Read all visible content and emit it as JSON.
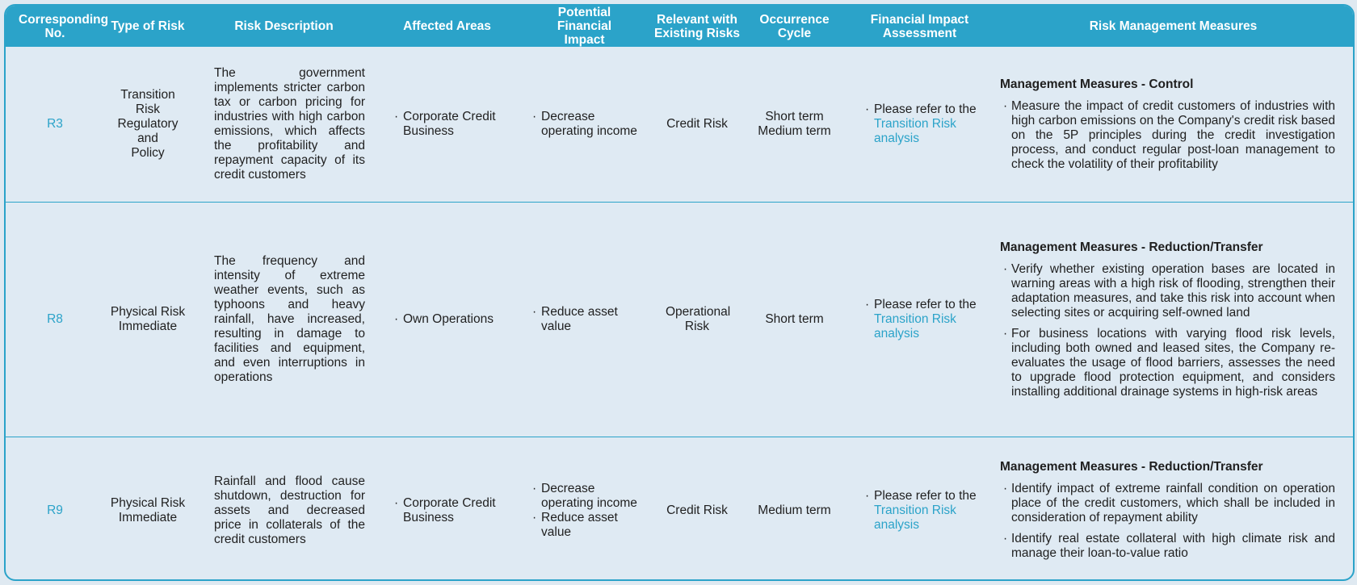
{
  "headers": [
    "Corresponding No.",
    "Type of Risk",
    "Risk Description",
    "Affected Areas",
    "Potential Financial Impact",
    "Relevant with Existing Risks",
    "Occurrence Cycle",
    "Financial Impact Assessment",
    "Risk Management Measures"
  ],
  "rows": [
    {
      "no": "R3",
      "type": [
        "Transition Risk",
        "Regulatory and",
        "Policy"
      ],
      "description": "The government implements stricter carbon tax or carbon pricing for industries with high carbon emissions, which affects the profitability and repayment capacity of its credit customers",
      "areas": [
        "Corporate Credit Business"
      ],
      "impacts": [
        "Decrease operating income"
      ],
      "existing": "Credit Risk",
      "cycle": [
        "Short term",
        "Medium term"
      ],
      "assessment_prefix": "Please refer to the",
      "assessment_link": "Transition Risk analysis",
      "measures_title": "Management Measures - Control",
      "measures": [
        "Measure the impact of credit customers of industries with high carbon emissions on the Company's credit risk based on the 5P principles during the credit investigation process, and conduct regular post-loan management to check the volatility of their profitability"
      ]
    },
    {
      "no": "R8",
      "type": [
        "Physical Risk",
        "Immediate"
      ],
      "description": "The frequency and intensity of extreme weather events, such as typhoons and heavy rainfall, have increased, resulting in damage to facilities and equipment, and even interruptions in operations",
      "areas": [
        "Own Operations"
      ],
      "impacts": [
        "Reduce asset value"
      ],
      "existing": "Operational Risk",
      "cycle": [
        "Short term"
      ],
      "assessment_prefix": "Please refer to the",
      "assessment_link": "Transition Risk analysis",
      "measures_title": "Management Measures - Reduction/Transfer",
      "measures": [
        "Verify whether existing operation bases are located in warning areas with a high risk of flooding, strengthen their adaptation measures, and take this risk into account when selecting sites or acquiring self-owned land",
        "For business locations with varying flood risk levels, including both owned and leased sites, the Company re-evaluates the usage of flood barriers, assesses the need to upgrade flood protection equipment, and considers installing additional drainage systems in high-risk areas"
      ]
    },
    {
      "no": "R9",
      "type": [
        "Physical Risk",
        "Immediate"
      ],
      "description": "Rainfall and flood cause shutdown, destruction for assets and decreased price in collaterals of the credit customers",
      "areas": [
        "Corporate Credit Business"
      ],
      "impacts": [
        "Decrease operating income",
        "Reduce asset value"
      ],
      "existing": "Credit Risk",
      "cycle": [
        "Medium term"
      ],
      "assessment_prefix": "Please refer to the",
      "assessment_link": "Transition Risk analysis",
      "measures_title": "Management Measures - Reduction/Transfer",
      "measures": [
        "Identify impact of extreme rainfall condition on operation place of the credit customers, which shall be included in consideration of repayment ability",
        "Identify real estate collateral with high climate risk and manage their loan-to-value ratio"
      ]
    }
  ],
  "colors": {
    "header_bg": "#2ba3c9",
    "body_bg": "#dfeaf3",
    "accent_text": "#2ba3c9"
  }
}
